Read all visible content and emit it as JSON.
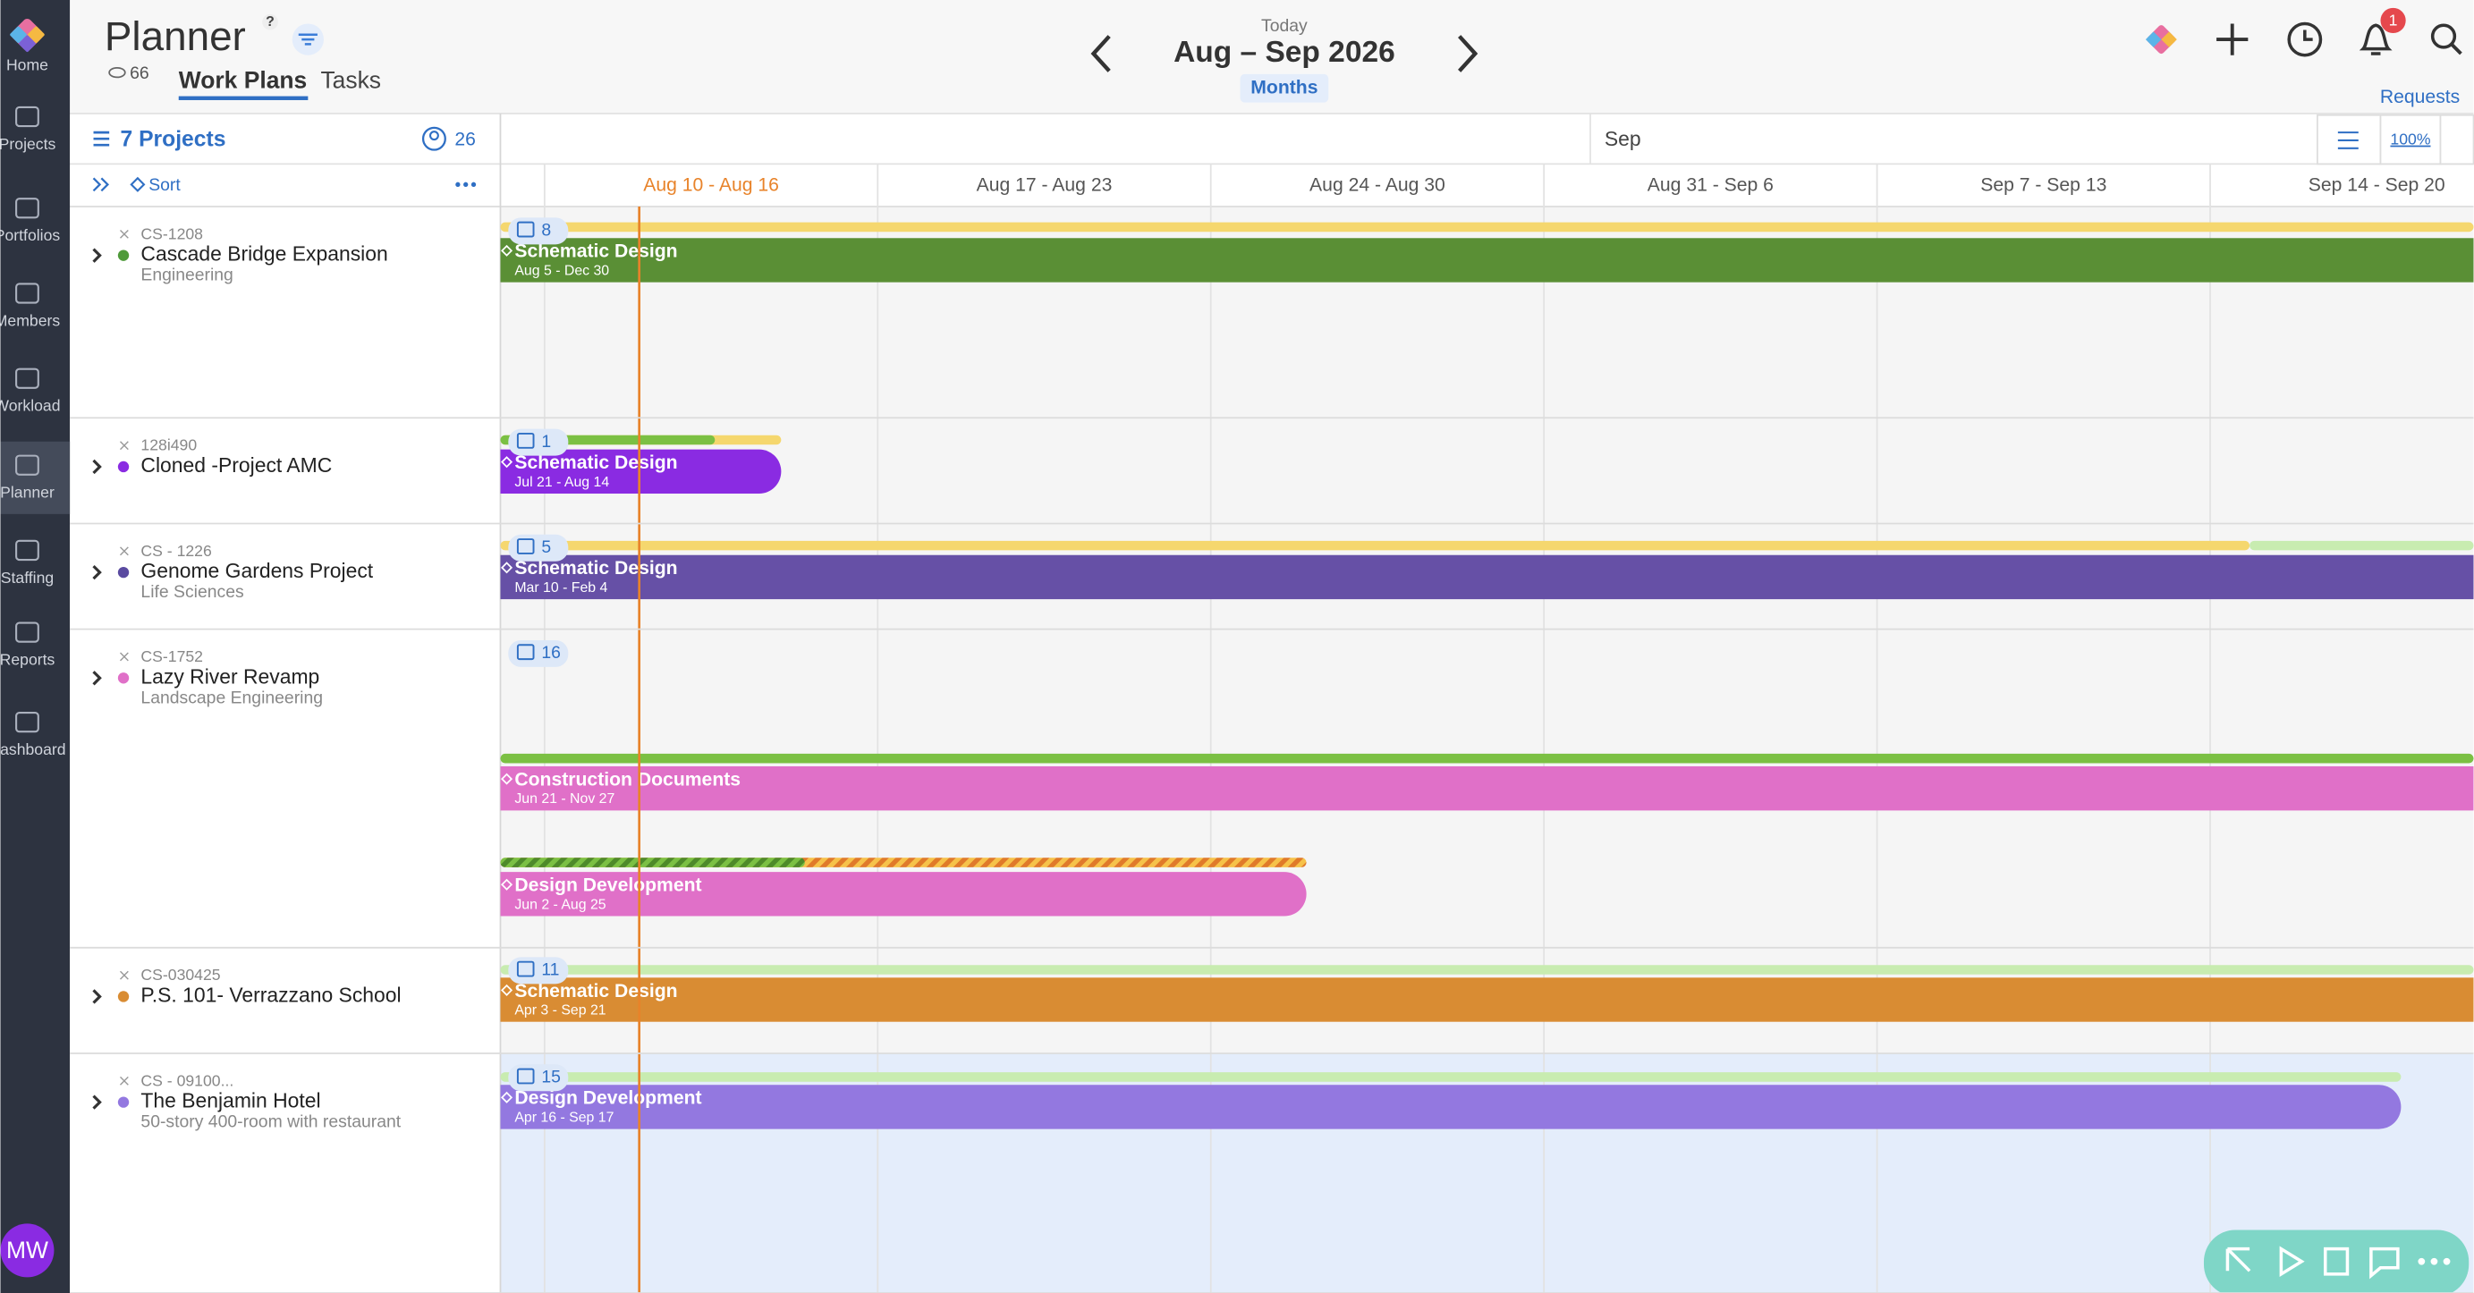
{
  "sidebar": {
    "items": [
      "Home",
      "Projects",
      "Portfolios",
      "Members",
      "Workload",
      "Planner",
      "Staffing",
      "Reports",
      "Dashboard"
    ],
    "avatar": "MW"
  },
  "header": {
    "title": "Planner",
    "help": "?",
    "views": "66",
    "tabs": [
      "Work Plans",
      "Tasks"
    ],
    "today": "Today",
    "range": "Aug – Sep 2026",
    "mode": "Months",
    "notifications": "1",
    "requests": "Requests"
  },
  "toolbar": {
    "projects": "7 Projects",
    "members": "26",
    "sort": "Sort",
    "month": "Sep",
    "zoom": "100%"
  },
  "weeks": [
    "Aug 10 - Aug 16",
    "Aug 17 - Aug 23",
    "Aug 24 - Aug 30",
    "Aug 31 - Sep 6",
    "Sep 7 - Sep 13",
    "Sep 14 - Sep 20"
  ],
  "projects": [
    {
      "code": "CS-1208",
      "name": "Cascade Bridge Expansion",
      "subtitle": "Engineering",
      "color": "#4f9a3a",
      "count": "8",
      "phases": [
        {
          "name": "Schematic Design",
          "dates": "Aug 5 - Dec 30",
          "color": "#5a8f35"
        }
      ]
    },
    {
      "code": "128i490",
      "name": "Cloned -Project AMC",
      "color": "#8a2be2",
      "count": "1",
      "phases": [
        {
          "name": "Schematic Design",
          "dates": "Jul 21 - Aug 14",
          "color": "#8a2be2"
        }
      ]
    },
    {
      "code": "CS - 1226",
      "name": "Genome Gardens Project",
      "subtitle": "Life Sciences",
      "color": "#5a4aa0",
      "count": "5",
      "phases": [
        {
          "name": "Schematic Design",
          "dates": "Mar 10 - Feb 4",
          "color": "#6650a6"
        }
      ]
    },
    {
      "code": "CS-1752",
      "name": "Lazy River Revamp",
      "subtitle": "Landscape Engineering",
      "color": "#e070c8",
      "count": "16",
      "phases": [
        {
          "name": "Construction Documents",
          "dates": "Jun 21 - Nov 27",
          "color": "#e070c8"
        },
        {
          "name": "Design Development",
          "dates": "Jun 2 - Aug 25",
          "color": "#e070c8"
        }
      ]
    },
    {
      "code": "CS-030425",
      "name": "P.S. 101- Verrazzano School",
      "color": "#d98c33",
      "count": "11",
      "phases": [
        {
          "name": "Schematic Design",
          "dates": "Apr 3 - Sep 21",
          "color": "#d98c33"
        }
      ]
    },
    {
      "code": "CS - 09100...",
      "name": "The Benjamin Hotel",
      "subtitle": "50-story 400-room with restaurant",
      "color": "#9378e0",
      "count": "15",
      "phases": [
        {
          "name": "Design Development",
          "dates": "Apr 16 - Sep 17",
          "color": "#9378e0"
        }
      ]
    }
  ]
}
